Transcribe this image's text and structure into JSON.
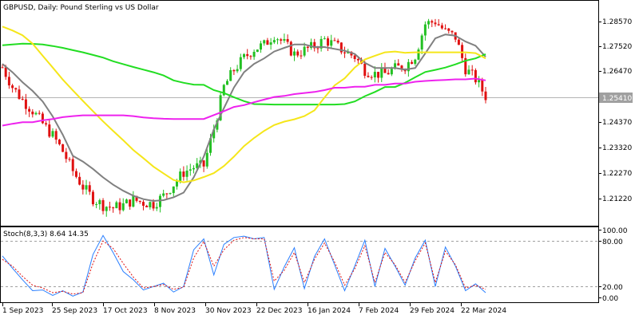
{
  "chart_data": [
    {
      "type": "candlestick",
      "title": "GBPUSD, Daily:  Pound Sterling vs US Dollar",
      "y_ticks": [
        "1.28570",
        "1.27520",
        "1.26470",
        "1.25410",
        "1.24370",
        "1.23320",
        "1.22270",
        "1.21220"
      ],
      "y_tick_values": [
        1.2857,
        1.2752,
        1.2647,
        1.2541,
        1.2437,
        1.2332,
        1.2227,
        1.2122
      ],
      "ylim": [
        1.2055,
        1.2905
      ],
      "x_labels": [
        "1 Sep 2023",
        "25 Sep 2023",
        "17 Oct 2023",
        "8 Nov 2023",
        "30 Nov 2023",
        "22 Dec 2023",
        "16 Jan 2024",
        "7 Feb 2024",
        "29 Feb 2024",
        "22 Mar 2024"
      ],
      "current_price": "1.25410",
      "current_price_value": 1.2541,
      "grid": false,
      "colors": {
        "up": "#22c022",
        "down": "#e01010",
        "ma_fast": "#808080",
        "ma_green": "#22dd22",
        "ma_yellow": "#f5e61a",
        "ma_magenta": "#ee22ee",
        "price_label_bg": "#a0a0a0"
      },
      "series": [
        {
          "kind": "moving-average",
          "color": "#808080",
          "values": [
            1.2668,
            1.2636,
            1.2598,
            1.2565,
            1.2525,
            1.2468,
            1.2398,
            1.2318,
            1.2296,
            1.2268,
            1.2236,
            1.2208,
            1.2185,
            1.2166,
            1.2153,
            1.2146,
            1.2149,
            1.216,
            1.2178,
            1.2236,
            1.2315,
            1.2418,
            1.2499,
            1.2578,
            1.2636,
            1.2668,
            1.2689,
            1.2715,
            1.2729,
            1.2742,
            1.2742,
            1.2732,
            1.2732,
            1.2725,
            1.2718,
            1.2706,
            1.2672,
            1.2652,
            1.2652,
            1.2652,
            1.2646,
            1.2652,
            1.2708,
            1.2765,
            1.278,
            1.2775,
            1.2753,
            1.2737,
            1.2695
          ]
        },
        {
          "kind": "moving-average",
          "color": "#22dd22",
          "values": [
            1.2739,
            1.2742,
            1.2745,
            1.2744,
            1.2742,
            1.2736,
            1.2729,
            1.272,
            1.2712,
            1.2702,
            1.2692,
            1.2678,
            1.2667,
            1.2656,
            1.2646,
            1.2636,
            1.2624,
            1.2605,
            1.2596,
            1.2589,
            1.2588,
            1.2568,
            1.2557,
            1.2541,
            1.2526,
            1.2515,
            1.2514,
            1.2513,
            1.2513,
            1.2513,
            1.2513,
            1.2513,
            1.2513,
            1.2513,
            1.2515,
            1.2525,
            1.2545,
            1.2561,
            1.258,
            1.258,
            1.2596,
            1.2617,
            1.2637,
            1.2645,
            1.2654,
            1.2666,
            1.268,
            1.2689,
            1.2705
          ]
        },
        {
          "kind": "moving-average",
          "color": "#f5e61a",
          "values": [
            1.281,
            1.2795,
            1.2777,
            1.2745,
            1.2699,
            1.2654,
            1.2608,
            1.2567,
            1.2527,
            1.2488,
            1.2449,
            1.2413,
            1.2377,
            1.234,
            1.2309,
            1.2277,
            1.2251,
            1.2226,
            1.2217,
            1.2224,
            1.2237,
            1.2252,
            1.2279,
            1.2315,
            1.2355,
            1.2386,
            1.2413,
            1.2435,
            1.2448,
            1.2457,
            1.2469,
            1.2491,
            1.254,
            1.2586,
            1.2613,
            1.2654,
            1.2685,
            1.2699,
            1.2712,
            1.2715,
            1.271,
            1.2712,
            1.2712,
            1.2712,
            1.2712,
            1.2712,
            1.2712,
            1.2709,
            1.2689
          ]
        },
        {
          "kind": "moving-average",
          "color": "#ee22ee",
          "values": [
            1.2433,
            1.244,
            1.2446,
            1.2446,
            1.2453,
            1.2458,
            1.2465,
            1.2469,
            1.2472,
            1.2472,
            1.2472,
            1.2472,
            1.2472,
            1.2469,
            1.2464,
            1.2461,
            1.2459,
            1.2458,
            1.2458,
            1.2458,
            1.2458,
            1.2473,
            1.2488,
            1.2504,
            1.2511,
            1.2522,
            1.2532,
            1.2542,
            1.2546,
            1.2553,
            1.2557,
            1.2561,
            1.2568,
            1.2577,
            1.2577,
            1.2581,
            1.2581,
            1.2588,
            1.2588,
            1.2593,
            1.2593,
            1.26,
            1.2603,
            1.2605,
            1.2607,
            1.2609,
            1.2609,
            1.2612,
            1.2605
          ]
        },
        {
          "kind": "close",
          "color": "#000000",
          "values": [
            1.2655,
            1.258,
            1.253,
            1.249,
            1.244,
            1.2395,
            1.2335,
            1.226,
            1.22,
            1.2155,
            1.213,
            1.212,
            1.213,
            1.215,
            1.214,
            1.2135,
            1.2165,
            1.221,
            1.2255,
            1.2275,
            1.228,
            1.242,
            1.258,
            1.2645,
            1.269,
            1.2725,
            1.274,
            1.278,
            1.2745,
            1.2705,
            1.272,
            1.2735,
            1.276,
            1.274,
            1.2715,
            1.2695,
            1.2645,
            1.263,
            1.263,
            1.265,
            1.266,
            1.27,
            1.282,
            1.283,
            1.279,
            1.277,
            1.265,
            1.261,
            1.2545
          ]
        }
      ]
    },
    {
      "type": "line",
      "title": "Stoch(8,3,3) 8.64 14.35",
      "y_ticks": [
        "100.00",
        "80.00",
        "20.00",
        "0.00"
      ],
      "y_tick_values": [
        100,
        80,
        20,
        0
      ],
      "ylim": [
        -5,
        105
      ],
      "levels": [
        80,
        20
      ],
      "series": [
        {
          "kind": "main",
          "color": "#2a7fff",
          "values": [
            63,
            45,
            28,
            12,
            13,
            5,
            12,
            4,
            10,
            65,
            93,
            68,
            40,
            28,
            13,
            18,
            23,
            10,
            18,
            72,
            88,
            35,
            80,
            90,
            92,
            88,
            90,
            14,
            47,
            75,
            15,
            62,
            88,
            50,
            12,
            48,
            86,
            18,
            74,
            48,
            20,
            60,
            86,
            18,
            76,
            48,
            12,
            22,
            9
          ]
        },
        {
          "kind": "signal",
          "color": "#e01010",
          "values": [
            58,
            48,
            33,
            20,
            16,
            9,
            11,
            7,
            9,
            52,
            85,
            74,
            52,
            32,
            16,
            18,
            21,
            14,
            17,
            60,
            84,
            48,
            72,
            86,
            90,
            88,
            88,
            26,
            42,
            68,
            24,
            58,
            82,
            54,
            20,
            44,
            78,
            24,
            68,
            50,
            24,
            56,
            82,
            24,
            70,
            50,
            16,
            20,
            14
          ]
        }
      ]
    }
  ]
}
